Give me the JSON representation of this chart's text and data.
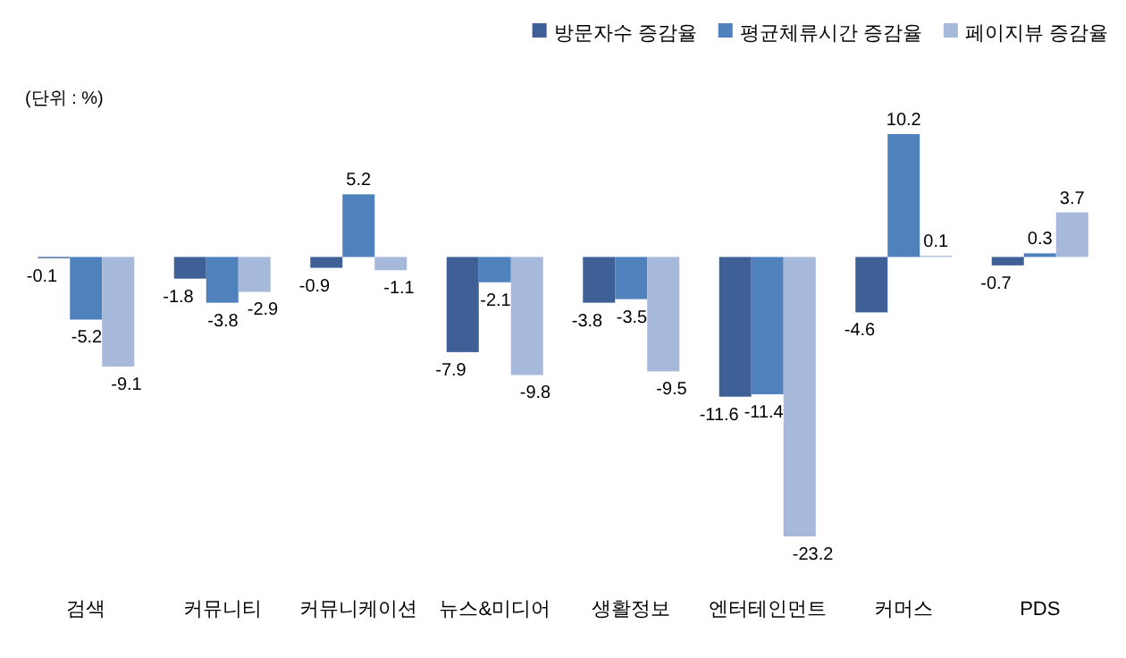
{
  "chart_data": {
    "type": "bar",
    "categories": [
      "검색",
      "커뮤니티",
      "커뮤니케이션",
      "뉴스&미디어",
      "생활정보",
      "엔터테인먼트",
      "커머스",
      "PDS"
    ],
    "series": [
      {
        "name": "방문자수 증감율",
        "color": "#3e6096",
        "values": [
          -0.1,
          -1.8,
          -0.9,
          -7.9,
          -3.8,
          -11.6,
          -4.6,
          -0.7
        ]
      },
      {
        "name": "평균체류시간 증감율",
        "color": "#4f81bd",
        "values": [
          -5.2,
          -3.8,
          5.2,
          -2.1,
          -3.5,
          -11.4,
          10.2,
          0.3
        ]
      },
      {
        "name": "페이지뷰 증감율",
        "color": "#a7b9da",
        "values": [
          -9.1,
          -2.9,
          -1.1,
          -9.8,
          -9.5,
          -23.2,
          0.1,
          3.7
        ]
      }
    ],
    "data_labels": true,
    "legend": "top right",
    "annotations": [
      "(단위 : %)"
    ]
  }
}
